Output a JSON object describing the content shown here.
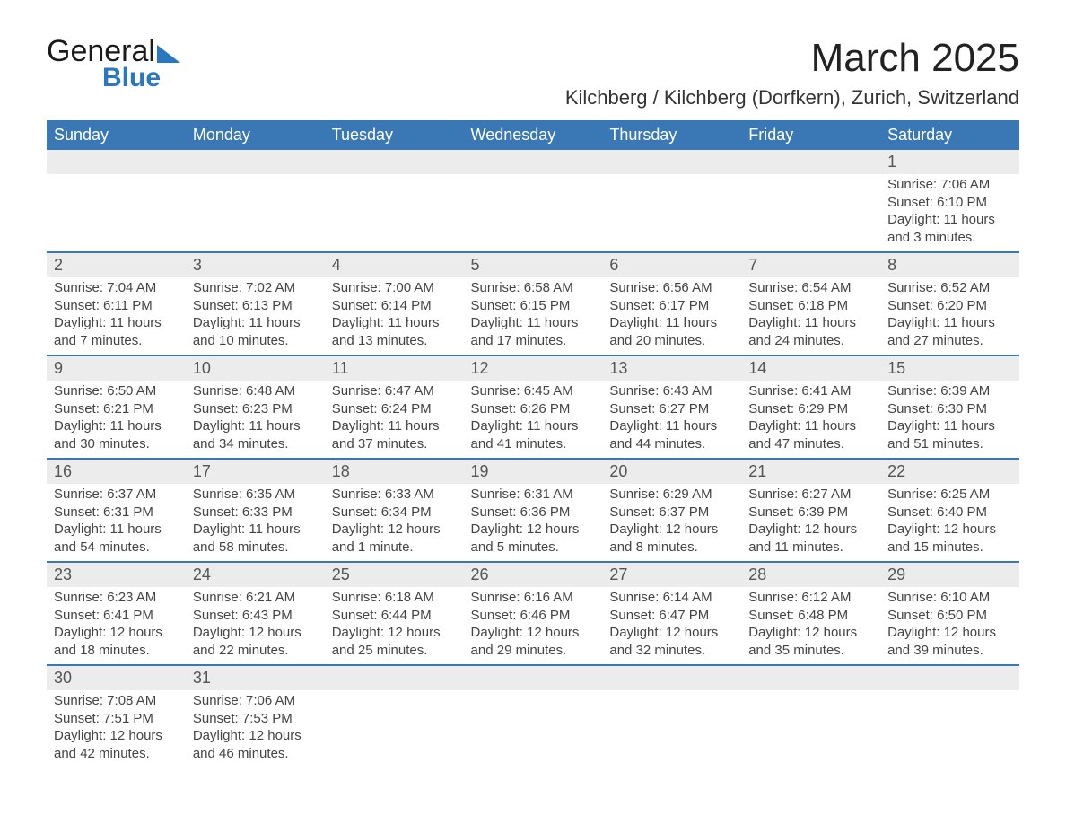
{
  "logo": {
    "word1": "General",
    "word2": "Blue"
  },
  "title": "March 2025",
  "location": "Kilchberg / Kilchberg (Dorfkern), Zurich, Switzerland",
  "colors": {
    "header_bg": "#3a78b5",
    "header_text": "#ffffff",
    "daynum_bg": "#ececec",
    "row_border": "#3a78b5",
    "body_text": "#444444",
    "page_bg": "#ffffff",
    "logo_blue": "#2b77c0"
  },
  "fonts": {
    "title_size_pt": 33,
    "location_size_pt": 17,
    "weekday_size_pt": 14,
    "daynum_size_pt": 14,
    "body_size_pt": 11
  },
  "weekdays": [
    "Sunday",
    "Monday",
    "Tuesday",
    "Wednesday",
    "Thursday",
    "Friday",
    "Saturday"
  ],
  "weeks": [
    [
      null,
      null,
      null,
      null,
      null,
      null,
      {
        "d": "1",
        "sr": "Sunrise: 7:06 AM",
        "ss": "Sunset: 6:10 PM",
        "dl": "Daylight: 11 hours and 3 minutes."
      }
    ],
    [
      {
        "d": "2",
        "sr": "Sunrise: 7:04 AM",
        "ss": "Sunset: 6:11 PM",
        "dl": "Daylight: 11 hours and 7 minutes."
      },
      {
        "d": "3",
        "sr": "Sunrise: 7:02 AM",
        "ss": "Sunset: 6:13 PM",
        "dl": "Daylight: 11 hours and 10 minutes."
      },
      {
        "d": "4",
        "sr": "Sunrise: 7:00 AM",
        "ss": "Sunset: 6:14 PM",
        "dl": "Daylight: 11 hours and 13 minutes."
      },
      {
        "d": "5",
        "sr": "Sunrise: 6:58 AM",
        "ss": "Sunset: 6:15 PM",
        "dl": "Daylight: 11 hours and 17 minutes."
      },
      {
        "d": "6",
        "sr": "Sunrise: 6:56 AM",
        "ss": "Sunset: 6:17 PM",
        "dl": "Daylight: 11 hours and 20 minutes."
      },
      {
        "d": "7",
        "sr": "Sunrise: 6:54 AM",
        "ss": "Sunset: 6:18 PM",
        "dl": "Daylight: 11 hours and 24 minutes."
      },
      {
        "d": "8",
        "sr": "Sunrise: 6:52 AM",
        "ss": "Sunset: 6:20 PM",
        "dl": "Daylight: 11 hours and 27 minutes."
      }
    ],
    [
      {
        "d": "9",
        "sr": "Sunrise: 6:50 AM",
        "ss": "Sunset: 6:21 PM",
        "dl": "Daylight: 11 hours and 30 minutes."
      },
      {
        "d": "10",
        "sr": "Sunrise: 6:48 AM",
        "ss": "Sunset: 6:23 PM",
        "dl": "Daylight: 11 hours and 34 minutes."
      },
      {
        "d": "11",
        "sr": "Sunrise: 6:47 AM",
        "ss": "Sunset: 6:24 PM",
        "dl": "Daylight: 11 hours and 37 minutes."
      },
      {
        "d": "12",
        "sr": "Sunrise: 6:45 AM",
        "ss": "Sunset: 6:26 PM",
        "dl": "Daylight: 11 hours and 41 minutes."
      },
      {
        "d": "13",
        "sr": "Sunrise: 6:43 AM",
        "ss": "Sunset: 6:27 PM",
        "dl": "Daylight: 11 hours and 44 minutes."
      },
      {
        "d": "14",
        "sr": "Sunrise: 6:41 AM",
        "ss": "Sunset: 6:29 PM",
        "dl": "Daylight: 11 hours and 47 minutes."
      },
      {
        "d": "15",
        "sr": "Sunrise: 6:39 AM",
        "ss": "Sunset: 6:30 PM",
        "dl": "Daylight: 11 hours and 51 minutes."
      }
    ],
    [
      {
        "d": "16",
        "sr": "Sunrise: 6:37 AM",
        "ss": "Sunset: 6:31 PM",
        "dl": "Daylight: 11 hours and 54 minutes."
      },
      {
        "d": "17",
        "sr": "Sunrise: 6:35 AM",
        "ss": "Sunset: 6:33 PM",
        "dl": "Daylight: 11 hours and 58 minutes."
      },
      {
        "d": "18",
        "sr": "Sunrise: 6:33 AM",
        "ss": "Sunset: 6:34 PM",
        "dl": "Daylight: 12 hours and 1 minute."
      },
      {
        "d": "19",
        "sr": "Sunrise: 6:31 AM",
        "ss": "Sunset: 6:36 PM",
        "dl": "Daylight: 12 hours and 5 minutes."
      },
      {
        "d": "20",
        "sr": "Sunrise: 6:29 AM",
        "ss": "Sunset: 6:37 PM",
        "dl": "Daylight: 12 hours and 8 minutes."
      },
      {
        "d": "21",
        "sr": "Sunrise: 6:27 AM",
        "ss": "Sunset: 6:39 PM",
        "dl": "Daylight: 12 hours and 11 minutes."
      },
      {
        "d": "22",
        "sr": "Sunrise: 6:25 AM",
        "ss": "Sunset: 6:40 PM",
        "dl": "Daylight: 12 hours and 15 minutes."
      }
    ],
    [
      {
        "d": "23",
        "sr": "Sunrise: 6:23 AM",
        "ss": "Sunset: 6:41 PM",
        "dl": "Daylight: 12 hours and 18 minutes."
      },
      {
        "d": "24",
        "sr": "Sunrise: 6:21 AM",
        "ss": "Sunset: 6:43 PM",
        "dl": "Daylight: 12 hours and 22 minutes."
      },
      {
        "d": "25",
        "sr": "Sunrise: 6:18 AM",
        "ss": "Sunset: 6:44 PM",
        "dl": "Daylight: 12 hours and 25 minutes."
      },
      {
        "d": "26",
        "sr": "Sunrise: 6:16 AM",
        "ss": "Sunset: 6:46 PM",
        "dl": "Daylight: 12 hours and 29 minutes."
      },
      {
        "d": "27",
        "sr": "Sunrise: 6:14 AM",
        "ss": "Sunset: 6:47 PM",
        "dl": "Daylight: 12 hours and 32 minutes."
      },
      {
        "d": "28",
        "sr": "Sunrise: 6:12 AM",
        "ss": "Sunset: 6:48 PM",
        "dl": "Daylight: 12 hours and 35 minutes."
      },
      {
        "d": "29",
        "sr": "Sunrise: 6:10 AM",
        "ss": "Sunset: 6:50 PM",
        "dl": "Daylight: 12 hours and 39 minutes."
      }
    ],
    [
      {
        "d": "30",
        "sr": "Sunrise: 7:08 AM",
        "ss": "Sunset: 7:51 PM",
        "dl": "Daylight: 12 hours and 42 minutes."
      },
      {
        "d": "31",
        "sr": "Sunrise: 7:06 AM",
        "ss": "Sunset: 7:53 PM",
        "dl": "Daylight: 12 hours and 46 minutes."
      },
      null,
      null,
      null,
      null,
      null
    ]
  ]
}
